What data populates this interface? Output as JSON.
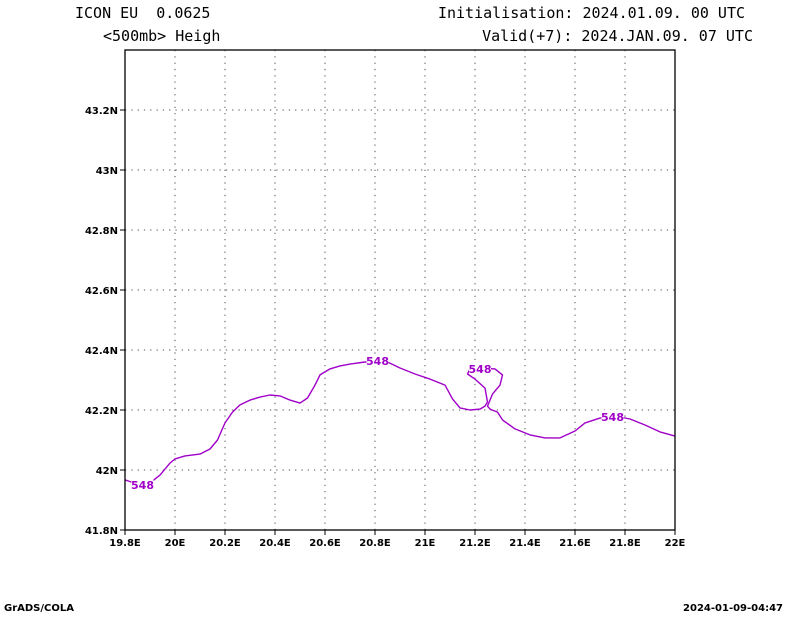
{
  "header": {
    "model": "ICON EU  0.0625",
    "field": "<500mb> Heigh",
    "initialisation": "Initialisation: 2024.01.09. 00 UTC",
    "valid": "Valid(+7): 2024.JAN.09. 07 UTC"
  },
  "footer": {
    "left": "GrADS/COLA",
    "right": "2024-01-09-04:47"
  },
  "chart_data": {
    "type": "line",
    "xlim": [
      19.8,
      22.0
    ],
    "ylim": [
      41.8,
      43.4
    ],
    "x_ticks": [
      {
        "value": 19.8,
        "label": "19.8E"
      },
      {
        "value": 20.0,
        "label": "20E"
      },
      {
        "value": 20.2,
        "label": "20.2E"
      },
      {
        "value": 20.4,
        "label": "20.4E"
      },
      {
        "value": 20.6,
        "label": "20.6E"
      },
      {
        "value": 20.8,
        "label": "20.8E"
      },
      {
        "value": 21.0,
        "label": "21E"
      },
      {
        "value": 21.2,
        "label": "21.2E"
      },
      {
        "value": 21.4,
        "label": "21.4E"
      },
      {
        "value": 21.6,
        "label": "21.6E"
      },
      {
        "value": 21.8,
        "label": "21.8E"
      },
      {
        "value": 22.0,
        "label": "22E"
      }
    ],
    "y_ticks": [
      {
        "value": 41.8,
        "label": "41.8N"
      },
      {
        "value": 42.0,
        "label": "42N"
      },
      {
        "value": 42.2,
        "label": "42.2N"
      },
      {
        "value": 42.4,
        "label": "42.4N"
      },
      {
        "value": 42.6,
        "label": "42.6N"
      },
      {
        "value": 42.8,
        "label": "42.8N"
      },
      {
        "value": 43.0,
        "label": "43N"
      },
      {
        "value": 43.2,
        "label": "43.2N"
      }
    ],
    "grid": true,
    "series": [
      {
        "color": "#a000c8",
        "points": [
          [
            19.8,
            41.967
          ],
          [
            19.85,
            41.953
          ],
          [
            19.9,
            41.957
          ],
          [
            19.94,
            41.983
          ],
          [
            19.98,
            42.023
          ],
          [
            20.0,
            42.037
          ],
          [
            20.04,
            42.047
          ],
          [
            20.1,
            42.053
          ],
          [
            20.14,
            42.07
          ],
          [
            20.17,
            42.1
          ],
          [
            20.2,
            42.157
          ],
          [
            20.23,
            42.193
          ],
          [
            20.26,
            42.217
          ],
          [
            20.3,
            42.233
          ],
          [
            20.34,
            42.243
          ],
          [
            20.38,
            42.25
          ],
          [
            20.42,
            42.247
          ],
          [
            20.46,
            42.233
          ],
          [
            20.5,
            42.223
          ],
          [
            20.53,
            42.24
          ],
          [
            20.56,
            42.283
          ],
          [
            20.58,
            42.317
          ],
          [
            20.62,
            42.337
          ],
          [
            20.66,
            42.347
          ],
          [
            20.7,
            42.353
          ],
          [
            20.76,
            42.36
          ],
          [
            20.85,
            42.36
          ],
          [
            20.9,
            42.34
          ],
          [
            20.96,
            42.32
          ],
          [
            21.02,
            42.303
          ],
          [
            21.08,
            42.283
          ],
          [
            21.11,
            42.237
          ],
          [
            21.14,
            42.207
          ],
          [
            21.18,
            42.2
          ],
          [
            21.22,
            42.203
          ],
          [
            21.24,
            42.213
          ],
          [
            21.25,
            42.227
          ],
          [
            21.24,
            42.273
          ],
          [
            21.2,
            42.303
          ],
          [
            21.17,
            42.32
          ],
          [
            21.18,
            42.337
          ],
          [
            21.22,
            42.34
          ],
          [
            21.28,
            42.337
          ],
          [
            21.31,
            42.317
          ],
          [
            21.3,
            42.283
          ],
          [
            21.27,
            42.253
          ],
          [
            21.25,
            42.213
          ],
          [
            21.26,
            42.203
          ],
          [
            21.29,
            42.193
          ],
          [
            21.31,
            42.167
          ],
          [
            21.36,
            42.137
          ],
          [
            21.42,
            42.117
          ],
          [
            21.48,
            42.107
          ],
          [
            21.54,
            42.107
          ],
          [
            21.6,
            42.13
          ],
          [
            21.64,
            42.157
          ],
          [
            21.7,
            42.173
          ],
          [
            21.76,
            42.18
          ],
          [
            21.82,
            42.17
          ],
          [
            21.88,
            42.15
          ],
          [
            21.94,
            42.127
          ],
          [
            22.0,
            42.113
          ]
        ],
        "contour_labels": [
          {
            "x": 19.87,
            "y": 41.95,
            "text": "548"
          },
          {
            "x": 20.81,
            "y": 42.363,
            "text": "548"
          },
          {
            "x": 21.22,
            "y": 42.337,
            "text": "548"
          },
          {
            "x": 21.75,
            "y": 42.177,
            "text": "548"
          }
        ]
      }
    ]
  }
}
